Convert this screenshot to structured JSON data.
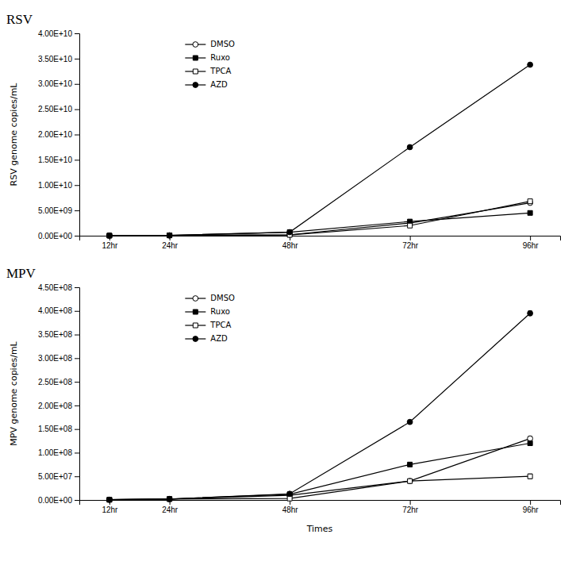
{
  "chart_data": [
    {
      "type": "line",
      "title": "RSV",
      "ylabel": "RSV genome copies/mL",
      "x": [
        12,
        24,
        48,
        72,
        96
      ],
      "xlim": [
        6,
        102
      ],
      "xticks": [
        {
          "value": 12,
          "label": "12hr"
        },
        {
          "value": 24,
          "label": "24hr"
        },
        {
          "value": 48,
          "label": "48hr"
        },
        {
          "value": 72,
          "label": "72hr"
        },
        {
          "value": 96,
          "label": "96hr"
        }
      ],
      "ylim": [
        0,
        40000000000.0
      ],
      "yticks": [
        {
          "value": 0,
          "label": "0.00E+00"
        },
        {
          "value": 5000000000.0,
          "label": "5.00E+09"
        },
        {
          "value": 10000000000.0,
          "label": "1.00E+10"
        },
        {
          "value": 15000000000.0,
          "label": "1.50E+10"
        },
        {
          "value": 20000000000.0,
          "label": "2.00E+10"
        },
        {
          "value": 25000000000.0,
          "label": "2.50E+10"
        },
        {
          "value": 30000000000.0,
          "label": "3.00E+10"
        },
        {
          "value": 35000000000.0,
          "label": "3.50E+10"
        },
        {
          "value": 40000000000.0,
          "label": "4.00E+10"
        }
      ],
      "grid": false,
      "legend": "upper left",
      "series": [
        {
          "name": "DMSO",
          "color": "#000000",
          "marker": "circle-open",
          "values": [
            20000000.0,
            50000000.0,
            200000000.0,
            2500000000.0,
            6500000000.0
          ],
          "errors": [
            0,
            0,
            0,
            100000000.0,
            200000000.0
          ]
        },
        {
          "name": "Ruxo",
          "color": "#000000",
          "marker": "square",
          "values": [
            20000000.0,
            80000000.0,
            700000000.0,
            2800000000.0,
            4500000000.0
          ],
          "errors": [
            0,
            0,
            0,
            100000000.0,
            200000000.0
          ]
        },
        {
          "name": "TPCA",
          "color": "#000000",
          "marker": "square-open",
          "values": [
            20000000.0,
            50000000.0,
            150000000.0,
            2000000000.0,
            6800000000.0
          ],
          "errors": [
            0,
            0,
            0,
            100000000.0,
            200000000.0
          ]
        },
        {
          "name": "AZD",
          "color": "#000000",
          "marker": "circle",
          "values": [
            20000000.0,
            50000000.0,
            700000000.0,
            17500000000.0,
            33800000000.0
          ],
          "errors": [
            0,
            0,
            100000000.0,
            200000000.0,
            200000000.0
          ]
        }
      ]
    },
    {
      "type": "line",
      "title": "MPV",
      "ylabel": "MPV genome copies/mL",
      "xlabel": "Times",
      "x": [
        12,
        24,
        48,
        72,
        96
      ],
      "xlim": [
        6,
        102
      ],
      "xticks": [
        {
          "value": 12,
          "label": "12hr"
        },
        {
          "value": 24,
          "label": "24hr"
        },
        {
          "value": 48,
          "label": "48hr"
        },
        {
          "value": 72,
          "label": "72hr"
        },
        {
          "value": 96,
          "label": "96hr"
        }
      ],
      "ylim": [
        0,
        450000000.0
      ],
      "yticks": [
        {
          "value": 0,
          "label": "0.00E+00"
        },
        {
          "value": 50000000.0,
          "label": "5.00E+07"
        },
        {
          "value": 100000000.0,
          "label": "1.00E+08"
        },
        {
          "value": 150000000.0,
          "label": "1.50E+08"
        },
        {
          "value": 200000000.0,
          "label": "2.00E+08"
        },
        {
          "value": 250000000.0,
          "label": "2.50E+08"
        },
        {
          "value": 300000000.0,
          "label": "3.00E+08"
        },
        {
          "value": 350000000.0,
          "label": "3.50E+08"
        },
        {
          "value": 400000000.0,
          "label": "4.00E+08"
        },
        {
          "value": 450000000.0,
          "label": "4.50E+08"
        }
      ],
      "grid": false,
      "legend": "upper left",
      "series": [
        {
          "name": "DMSO",
          "color": "#000000",
          "marker": "circle-open",
          "values": [
            500000.0,
            2000000.0,
            10000000.0,
            40000000.0,
            130000000.0
          ],
          "errors": [
            0,
            0,
            0,
            2000000.0,
            5000000.0
          ]
        },
        {
          "name": "Ruxo",
          "color": "#000000",
          "marker": "square",
          "values": [
            500000.0,
            2000000.0,
            12000000.0,
            75000000.0,
            120000000.0
          ],
          "errors": [
            0,
            0,
            0,
            2000000.0,
            5000000.0
          ]
        },
        {
          "name": "TPCA",
          "color": "#000000",
          "marker": "square-open",
          "values": [
            500000.0,
            2000000.0,
            3000000.0,
            40000000.0,
            50000000.0
          ],
          "errors": [
            0,
            0,
            0,
            2000000.0,
            5000000.0
          ]
        },
        {
          "name": "AZD",
          "color": "#000000",
          "marker": "circle",
          "values": [
            500000.0,
            2000000.0,
            13000000.0,
            165000000.0,
            395000000.0
          ],
          "errors": [
            0,
            0,
            0,
            2000000.0,
            5000000.0
          ]
        }
      ]
    }
  ]
}
